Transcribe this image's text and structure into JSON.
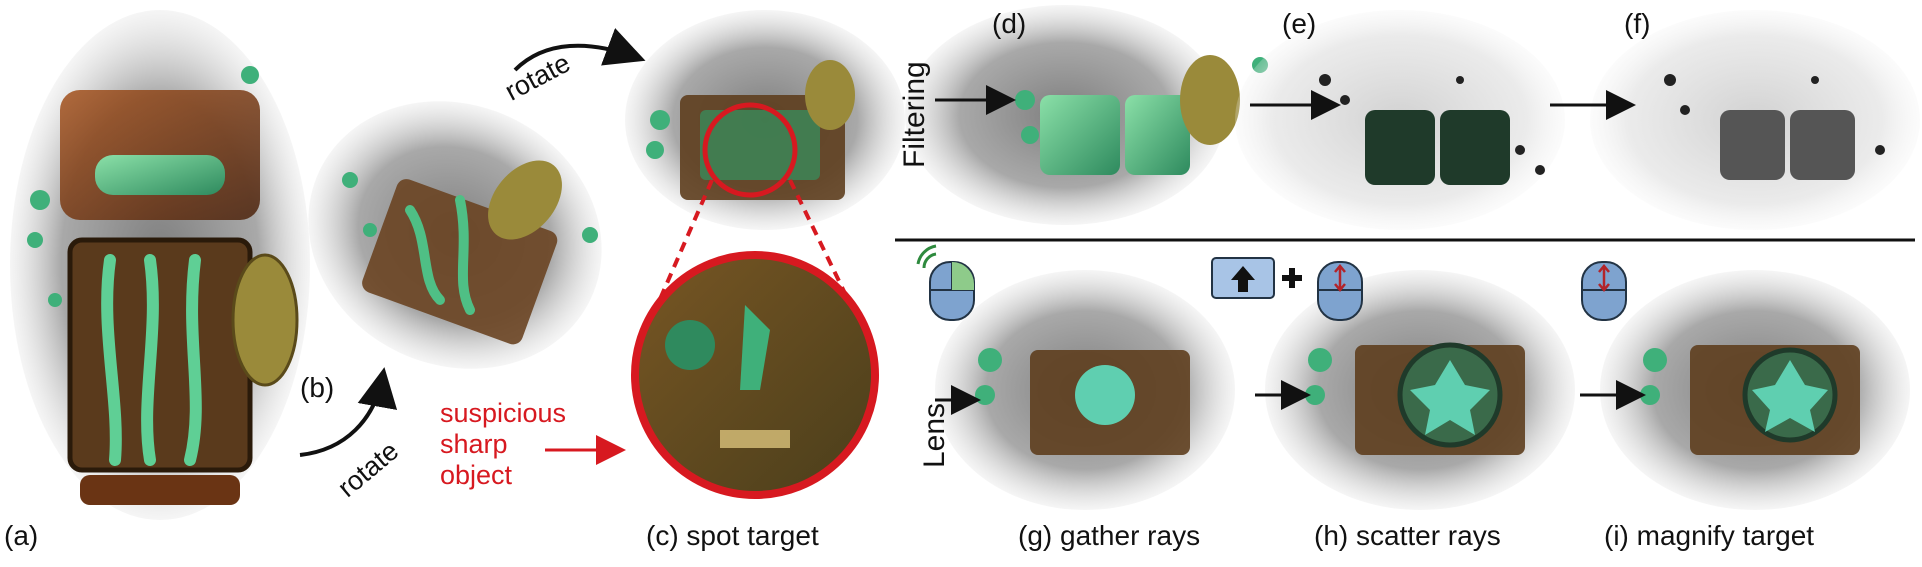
{
  "labels": {
    "a": "(a)",
    "b": "(b)",
    "c": "(c) spot target",
    "d": "(d)",
    "e": "(e)",
    "f": "(f)",
    "g": "(g) gather rays",
    "h": "(h) scatter rays",
    "i": "(i) magnify target"
  },
  "rotate_1": "rotate",
  "rotate_2": "rotate",
  "row_labels": {
    "filtering": "Filtering",
    "lens": "Lens"
  },
  "annotation": {
    "line1": "suspicious",
    "line2": "sharp",
    "line3": "object"
  },
  "colors": {
    "accent_red": "#d71920",
    "object_green": "#3fb07a",
    "rust": "#7a3a12",
    "haze": "#9a9a9a"
  },
  "icons": [
    "mouse-click-icon",
    "up-arrow-key-icon",
    "mouse-scroll-icon"
  ]
}
